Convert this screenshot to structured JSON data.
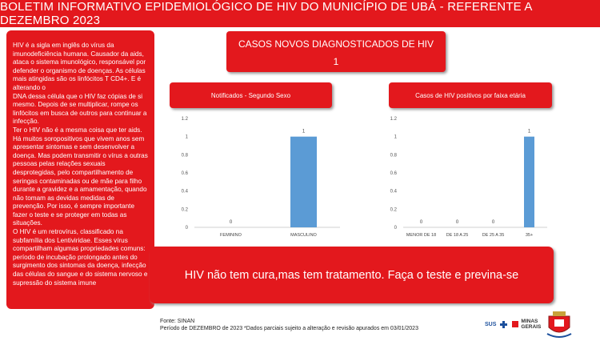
{
  "header": {
    "title": "BOLETIM INFORMATIVO EPIDEMIOLÓGICO DE HIV DO MUNICÍPIO DE UBÁ - REFERENTE A DEZEMBRO 2023"
  },
  "left_panel": {
    "paragraphs": [
      "    HIV é a sigla em inglês do vírus da imunodeficiência humana. Causador da aids,\nataca o sistema imunológico, responsável por defender o organismo de doenças. As células mais atingidas são os linfócitos T CD4+. E é alterando o\nDNA dessa célula que o HIV faz cópias de si mesmo. Depois de se multiplicar, rompe os linfócitos em busca de outros para continuar a infecção.\nTer o HIV não é a mesma coisa que ter aids.",
      "    Há muitos soropositivos que vivem anos sem apresentar sintomas e sem desenvolver a doença. Mas podem transmitir o vírus a outras pessoas pelas relações sexuais desprotegidas, pelo compartilhamento de seringas contaminadas ou de mãe para filho durante a gravidez e a amamentação, quando não tomam as devidas medidas de prevenção. Por isso, é sempre importante fazer o teste e se proteger em todas as situações.",
      "    O HIV é um retrovírus, classificado na subfamília dos Lentiviridae. Esses vírus compartilham algumas propriedades comuns: período de incubação prolongado antes do surgimento dos sintomas da doença, infecção das células do sangue e do sistema nervoso e supressão do sistema imune"
    ]
  },
  "casos_box": {
    "title": "CASOS NOVOS DIAGNOSTICADOS  DE HIV",
    "value": "1"
  },
  "chart_data": [
    {
      "type": "bar",
      "title": "Notificados - Segundo Sexo",
      "categories": [
        "FEMININO",
        "MASCULINO"
      ],
      "values": [
        0,
        1
      ],
      "ylim": [
        0,
        1.2
      ],
      "yticks": [
        "0",
        "0.2",
        "0.4",
        "0.6",
        "0.8",
        "1",
        "1.2"
      ],
      "bar_color": "#5b9bd5",
      "grid": false
    },
    {
      "type": "bar",
      "title": "Casos de HIV positivos por faixa etária",
      "categories": [
        "MENOR DE 18",
        "DE 18 A 25",
        "DE 25 A 35",
        "35+"
      ],
      "values": [
        0,
        0,
        0,
        1
      ],
      "ylim": [
        0,
        1.2
      ],
      "yticks": [
        "0",
        "0.2",
        "0.4",
        "0.6",
        "0.8",
        "1",
        "1.2"
      ],
      "bar_color": "#5b9bd5",
      "grid": false
    }
  ],
  "banner": {
    "text": "HIV não tem cura,mas tem tratamento. Faça o teste e previna-se"
  },
  "footer": {
    "source": "Fonte: SINAN",
    "period": "Período de DEZEMBRO de 2023 *Dados parciais sujeito a alteração e revisão apurados em 03/01/2023"
  },
  "logos": {
    "sus": "SUS",
    "mg_line1": "MINAS",
    "mg_line2": "GERAIS"
  },
  "colors": {
    "brand_red": "#e3181d",
    "bar_blue": "#5b9bd5"
  }
}
